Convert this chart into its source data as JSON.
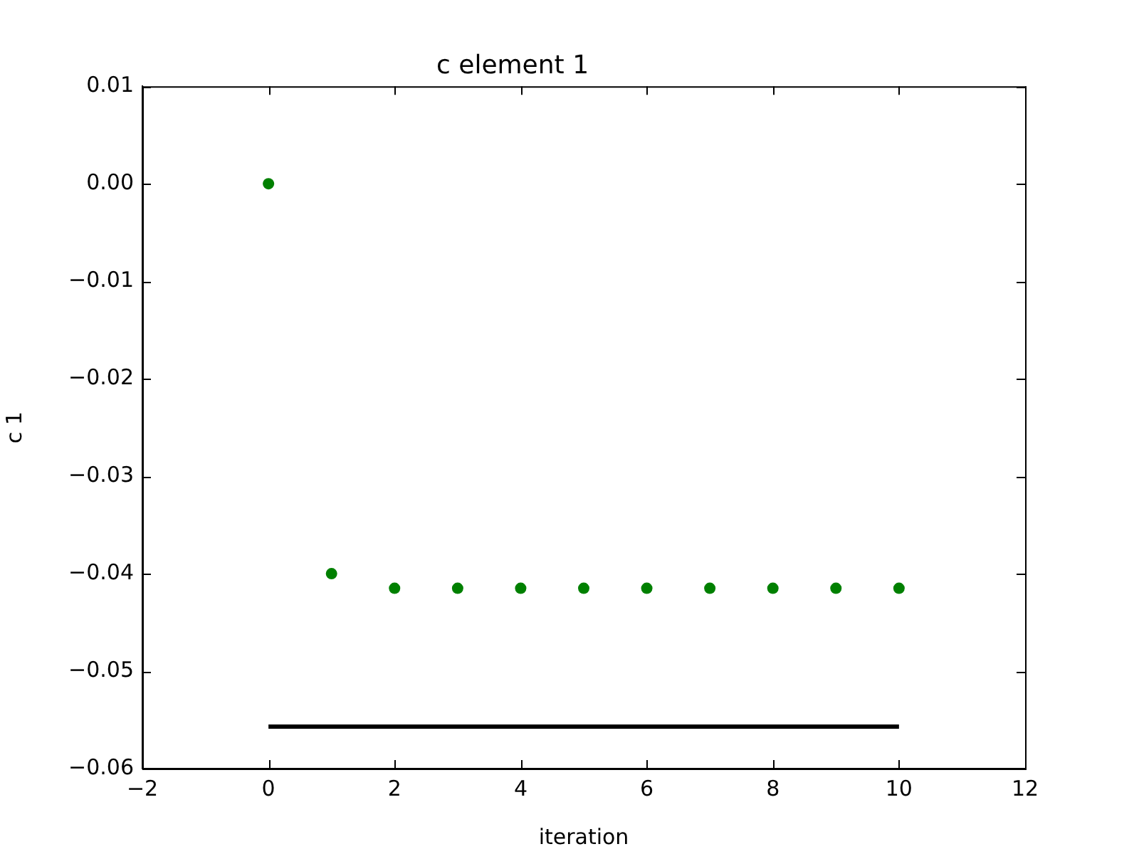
{
  "chart_data": {
    "type": "scatter",
    "title": "c element 1",
    "xlabel": "iteration",
    "ylabel": "c 1",
    "series": [
      {
        "type": "scatter",
        "marker": "circle",
        "color": "#008000",
        "x": [
          0,
          1,
          2,
          3,
          4,
          5,
          6,
          7,
          8,
          9,
          10
        ],
        "values": [
          0,
          -0.04,
          -0.0415,
          -0.0415,
          -0.0415,
          -0.0415,
          -0.0415,
          -0.0415,
          -0.0415,
          -0.0415,
          -0.0415
        ]
      },
      {
        "type": "line",
        "marker": "none",
        "color": "#000000",
        "x": [
          0,
          10
        ],
        "values": [
          -0.0557,
          -0.0557
        ]
      }
    ],
    "grid": false,
    "legend": false,
    "xlim": [
      -2,
      12
    ],
    "xticks": [
      {
        "value": -2,
        "label": "−2"
      },
      0,
      2,
      4,
      6,
      8,
      10,
      12
    ],
    "ylim": [
      -0.06,
      0.01
    ],
    "yticks": [
      {
        "value": -0.06,
        "label": "−0.06"
      },
      {
        "value": -0.05,
        "label": "−0.05"
      },
      {
        "value": -0.04,
        "label": "−0.04"
      },
      {
        "value": -0.03,
        "label": "−0.03"
      },
      {
        "value": -0.02,
        "label": "−0.02"
      },
      {
        "value": -0.01,
        "label": "−0.01"
      },
      {
        "value": 0,
        "label": "0.00"
      },
      0.01
    ]
  }
}
